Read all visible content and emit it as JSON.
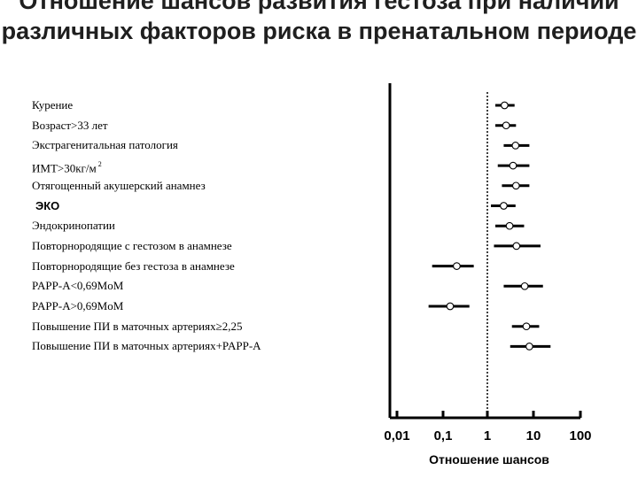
{
  "chart_data": {
    "type": "forest",
    "title": "Отношение шансов развития гестоза при наличии различных факторов риска в пренатальном периоде",
    "xlabel": "Отношение шансов",
    "x_scale": "log",
    "xlim": [
      0.01,
      100
    ],
    "x_ticks": [
      "0,01",
      "0,1",
      "1",
      "10",
      "100"
    ],
    "x_tick_values": [
      0.01,
      0.1,
      1,
      10,
      100
    ],
    "reference_line": 1,
    "items": [
      {
        "label": "Курение",
        "or": 2.4,
        "lo": 1.5,
        "hi": 4.0
      },
      {
        "label": "Возраст>33 лет",
        "or": 2.6,
        "lo": 1.5,
        "hi": 4.3
      },
      {
        "label": "Экстрагенитальная патология",
        "or": 4.2,
        "lo": 2.3,
        "hi": 8.5
      },
      {
        "label": "ИМТ>30кг/м",
        "label_sup": "2",
        "or": 3.7,
        "lo": 1.7,
        "hi": 8.5
      },
      {
        "label": "Отягощенный акушерский анамнез",
        "or": 4.3,
        "lo": 2.1,
        "hi": 8.5
      },
      {
        "label": "ЭКО",
        "or": 2.3,
        "lo": 1.2,
        "hi": 4.2
      },
      {
        "label": "Эндокринопатии",
        "or": 3.1,
        "lo": 1.5,
        "hi": 6.5
      },
      {
        "label": "Повторнородящие с гестозом в анамнезе",
        "or": 4.4,
        "lo": 1.4,
        "hi": 15
      },
      {
        "label": "Повторнородящие без гестоза в анамнезе",
        "or": 0.21,
        "lo": 0.06,
        "hi": 0.5
      },
      {
        "label": "PAPP-A<0,69MoM",
        "or": 6.7,
        "lo": 2.3,
        "hi": 17
      },
      {
        "label": "PAPP-A>0,69MoM",
        "or": 0.15,
        "lo": 0.05,
        "hi": 0.4
      },
      {
        "label": "Повышение ПИ в маточных артериях≥2,25",
        "or": 7.3,
        "lo": 3.5,
        "hi": 14
      },
      {
        "label": "Повышение ПИ в маточных артериях+PAPP-A",
        "or": 8.5,
        "lo": 3.2,
        "hi": 25
      }
    ]
  }
}
